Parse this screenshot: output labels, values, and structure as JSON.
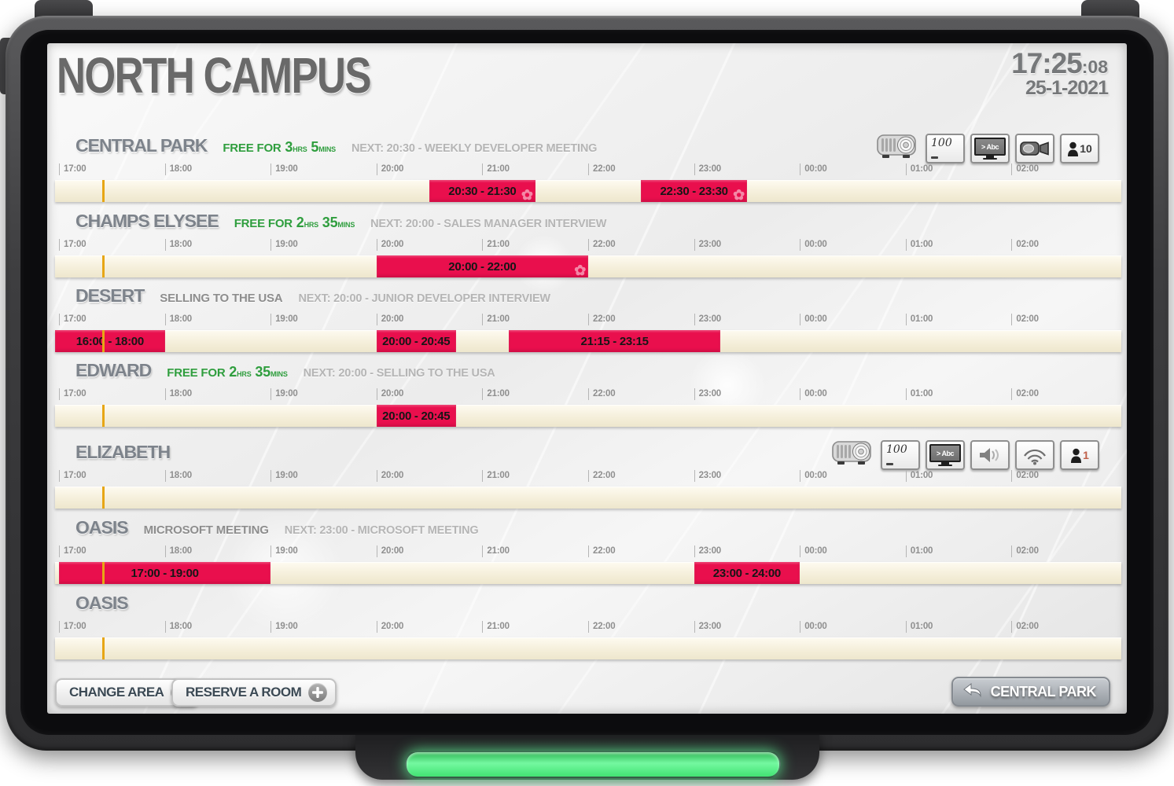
{
  "header": {
    "title": "NORTH CAMPUS",
    "time": "17:25",
    "seconds": "08",
    "date": "25-1-2021"
  },
  "timeline": {
    "hours": [
      "17:00",
      "18:00",
      "19:00",
      "20:00",
      "21:00",
      "22:00",
      "23:00",
      "00:00",
      "01:00",
      "02:00"
    ],
    "current_time": "17:25"
  },
  "colors": {
    "busy_red": "#e90f4d",
    "free_green": "#2f9e3e",
    "marker_orange": "#e7a615",
    "led_green": "#52e87e",
    "occupancy_highlight": "#c0604a"
  },
  "rooms": [
    {
      "name": "CENTRAL PARK",
      "status_type": "free",
      "free": {
        "label": "FREE FOR",
        "hours": "3",
        "hours_unit": "HRS",
        "mins": "5",
        "mins_unit": "MINS"
      },
      "current": "",
      "next": "NEXT: 20:30 - WEEKLY DEVELOPER MEETING",
      "icons": [
        {
          "type": "projector-icon"
        },
        {
          "type": "whiteboard-icon",
          "label": "100"
        },
        {
          "type": "screen-text-icon",
          "label": "> Abc"
        },
        {
          "type": "camera-icon"
        },
        {
          "type": "occupancy-icon",
          "label": "10",
          "highlighted": false
        }
      ],
      "bookings": [
        {
          "label": "20:30 - 21:30",
          "start": "20:30",
          "end": "21:30",
          "recurring": true
        },
        {
          "label": "22:30 - 23:30",
          "start": "22:30",
          "end": "23:30",
          "recurring": true
        }
      ]
    },
    {
      "name": "CHAMPS ELYSEE",
      "status_type": "free",
      "free": {
        "label": "FREE FOR",
        "hours": "2",
        "hours_unit": "HRS",
        "mins": "35",
        "mins_unit": "MINS"
      },
      "current": "",
      "next": "NEXT: 20:00 - SALES MANAGER INTERVIEW",
      "icons": [],
      "bookings": [
        {
          "label": "20:00 - 22:00",
          "start": "20:00",
          "end": "22:00",
          "recurring": true
        }
      ]
    },
    {
      "name": "DESERT",
      "status_type": "busy",
      "free": null,
      "current": "SELLING TO THE USA",
      "next": "NEXT: 20:00 - JUNIOR DEVELOPER INTERVIEW",
      "icons": [],
      "bookings": [
        {
          "label": "16:00 - 18:00",
          "start": "16:00",
          "end": "18:00",
          "recurring": false
        },
        {
          "label": "20:00 - 20:45",
          "start": "20:00",
          "end": "20:45",
          "recurring": false
        },
        {
          "label": "21:15 - 23:15",
          "start": "21:15",
          "end": "23:15",
          "recurring": false
        }
      ]
    },
    {
      "name": "EDWARD",
      "status_type": "free",
      "free": {
        "label": "FREE FOR",
        "hours": "2",
        "hours_unit": "HRS",
        "mins": "35",
        "mins_unit": "MINS"
      },
      "current": "",
      "next": "NEXT: 20:00 - SELLING TO THE USA",
      "icons": [],
      "bookings": [
        {
          "label": "20:00 - 20:45",
          "start": "20:00",
          "end": "20:45",
          "recurring": false
        }
      ]
    },
    {
      "name": "ELIZABETH",
      "status_type": "none",
      "free": null,
      "current": "",
      "next": "",
      "icons": [
        {
          "type": "projector-icon"
        },
        {
          "type": "whiteboard-icon",
          "label": "100"
        },
        {
          "type": "screen-text-icon",
          "label": "> Abc"
        },
        {
          "type": "speaker-icon"
        },
        {
          "type": "wifi-icon"
        },
        {
          "type": "occupancy-icon",
          "label": "1",
          "highlighted": true
        }
      ],
      "bookings": []
    },
    {
      "name": "OASIS",
      "status_type": "busy",
      "free": null,
      "current": "MICROSOFT MEETING",
      "next": "NEXT: 23:00 - MICROSOFT MEETING",
      "icons": [],
      "bookings": [
        {
          "label": "17:00 - 19:00",
          "start": "17:00",
          "end": "19:00",
          "recurring": false
        },
        {
          "label": "23:00 - 24:00",
          "start": "23:00",
          "end": "24:00",
          "recurring": false
        }
      ]
    },
    {
      "name": "OASIS",
      "status_type": "none",
      "free": null,
      "current": "",
      "next": "",
      "icons": [],
      "bookings": []
    }
  ],
  "footer": {
    "change_area": "CHANGE AREA",
    "reserve_room": "RESERVE A ROOM",
    "back_room": "CENTRAL PARK"
  }
}
